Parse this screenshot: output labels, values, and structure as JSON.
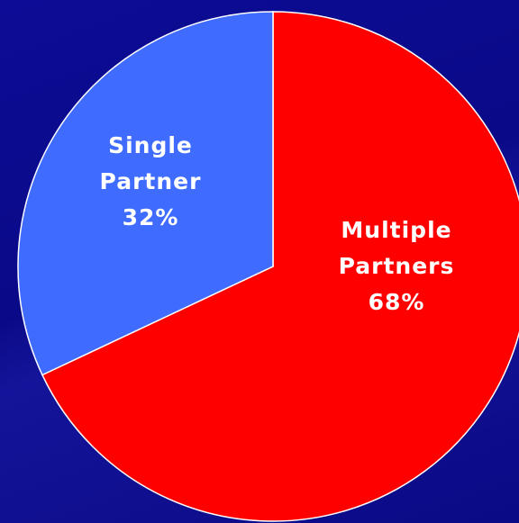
{
  "chart_data": {
    "type": "pie",
    "categories": [
      "Multiple Partners",
      "Single Partner"
    ],
    "values": [
      68,
      32
    ],
    "value_labels": [
      "68%",
      "32%"
    ],
    "colors": [
      "#ff0000",
      "#3f6cff"
    ]
  }
}
